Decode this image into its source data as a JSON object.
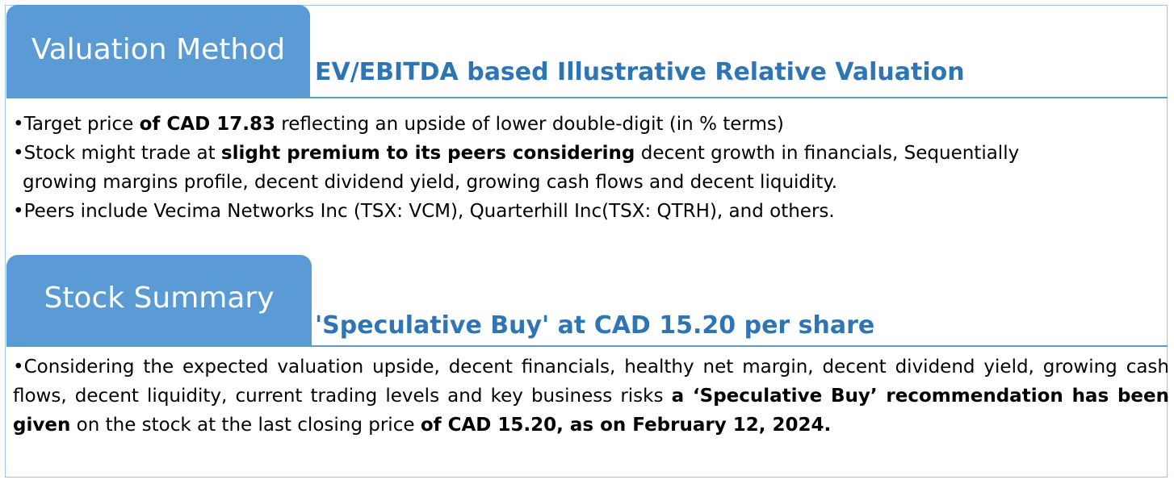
{
  "section1": {
    "tab_label": "Valuation Method",
    "subtitle": "EV/EBITDA based Illustrative Relative Valuation",
    "bullets": [
      {
        "b": "•",
        "t1": "Target price ",
        "bold1": "of CAD 17.83",
        "t2": " reflecting an upside of lower double-digit (in % terms)"
      },
      {
        "b": "•",
        "t1": "Stock might trade at ",
        "bold1": "slight premium to its peers considering",
        "t2": " decent growth in financials,  Sequentially",
        "cont": "growing margins profile, decent dividend yield, growing cash flows and decent liquidity."
      },
      {
        "b": "•",
        "t1": "Peers include Vecima Networks Inc (TSX: VCM), Quarterhill Inc(TSX: QTRH), and others."
      }
    ]
  },
  "section2": {
    "tab_label": "Stock Summary",
    "subtitle": "'Speculative Buy' at CAD 15.20 per share",
    "paragraph": {
      "b": "•",
      "t1": "Considering the expected valuation upside, decent financials,  healthy net margin, decent dividend yield, growing cash flows, decent liquidity, current trading levels and key business risks ",
      "bold1": "a ‘Speculative Buy’ recommendation has been given",
      "t2": " on the stock at the last closing price ",
      "bold2": "of CAD 15.20, as on February 12, 2024."
    }
  },
  "colors": {
    "tab_bg": "#5b9bd5",
    "subtitle": "#2e75b6",
    "border": "#9ec3e6"
  }
}
